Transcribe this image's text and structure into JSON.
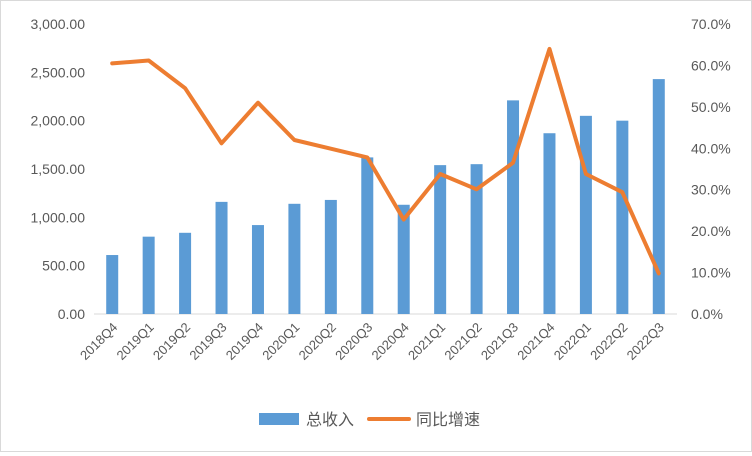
{
  "chart_data": {
    "type": "bar",
    "categories": [
      "2018Q4",
      "2019Q1",
      "2019Q2",
      "2019Q3",
      "2019Q4",
      "2020Q1",
      "2020Q2",
      "2020Q3",
      "2020Q4",
      "2021Q1",
      "2021Q2",
      "2021Q3",
      "2021Q4",
      "2022Q1",
      "2022Q2",
      "2022Q3"
    ],
    "series": [
      {
        "name": "总收入",
        "type": "bar",
        "axis": "left",
        "color": "#5B9BD5",
        "values": [
          610,
          800,
          840,
          1160,
          920,
          1140,
          1180,
          1620,
          1130,
          1540,
          1550,
          2210,
          1870,
          2050,
          2000,
          2430
        ]
      },
      {
        "name": "同比增速",
        "type": "line",
        "axis": "right",
        "color": "#ED7D31",
        "values": [
          60.5,
          61.2,
          54.5,
          41.2,
          51.0,
          42.0,
          39.9,
          37.8,
          22.8,
          33.8,
          30.1,
          36.5,
          64.0,
          33.8,
          29.4,
          9.8
        ]
      }
    ],
    "y_left": {
      "ylim": [
        0,
        3000
      ],
      "ticks": [
        "0.00",
        "500.00",
        "1,000.00",
        "1,500.00",
        "2,000.00",
        "2,500.00",
        "3,000.00"
      ]
    },
    "y_right": {
      "ylim": [
        0,
        70
      ],
      "ticks": [
        "0.0%",
        "10.0%",
        "20.0%",
        "30.0%",
        "40.0%",
        "50.0%",
        "60.0%",
        "70.0%"
      ]
    },
    "grid": false,
    "legend_position": "bottom",
    "title": "",
    "xlabel": "",
    "ylabel": ""
  }
}
